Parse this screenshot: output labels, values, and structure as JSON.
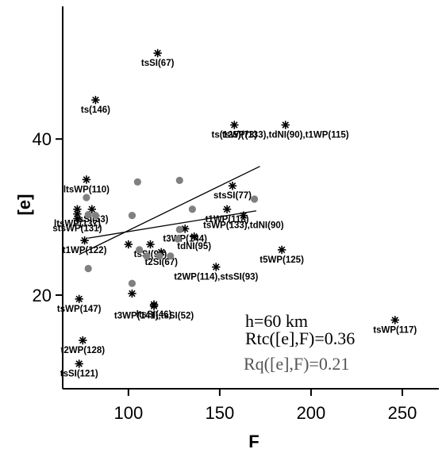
{
  "chart_data": {
    "type": "scatter",
    "xlabel": "F",
    "ylabel": "[e]",
    "xlim": [
      64,
      270
    ],
    "ylim": [
      8,
      57
    ],
    "xticks": [
      {
        "v": 100,
        "t": "100"
      },
      {
        "v": 150,
        "t": "150"
      },
      {
        "v": 200,
        "t": "200"
      },
      {
        "v": 250,
        "t": "250"
      }
    ],
    "yticks": [
      {
        "v": 20,
        "t": "20"
      },
      {
        "v": 40,
        "t": "40"
      }
    ],
    "annotations": [
      {
        "text": "h=60 km",
        "color": "#000000"
      },
      {
        "text": "Rtc([e],F)=0.36",
        "color": "#000000"
      },
      {
        "text": "Rq([e],F)=0.21",
        "color": "#555555"
      }
    ],
    "series": [
      {
        "marker": "star",
        "color": "#000000",
        "points": [
          {
            "x": 116,
            "y": 51.0,
            "label": "tsSI(67)"
          },
          {
            "x": 82,
            "y": 45.0,
            "label": "ts(146)"
          },
          {
            "x": 158,
            "y": 41.8,
            "label": "ts(125)(73)"
          },
          {
            "x": 186,
            "y": 41.8,
            "label": "tsWP(133),tdNI(90),t1WP(115)"
          },
          {
            "x": 77,
            "y": 34.8,
            "label": "ltsWP(110)"
          },
          {
            "x": 157,
            "y": 34.0,
            "label": "stsSI(77)"
          },
          {
            "x": 72,
            "y": 31.0,
            "label": ""
          },
          {
            "x": 72,
            "y": 30.4,
            "label": "ltsWP(137)"
          },
          {
            "x": 72,
            "y": 29.8,
            "label": "stsWP(131)"
          },
          {
            "x": 80,
            "y": 31.0,
            "label": "tsSI(53)"
          },
          {
            "x": 154,
            "y": 31.0,
            "label": "t1WP(118)"
          },
          {
            "x": 163,
            "y": 30.2,
            "label": "tsWP(133),tdNI(90)"
          },
          {
            "x": 131,
            "y": 28.5,
            "label": "t3WP(144)"
          },
          {
            "x": 136,
            "y": 27.5,
            "label": "tdNI(95)"
          },
          {
            "x": 76,
            "y": 27.0,
            "label": "t1WP(122)"
          },
          {
            "x": 100,
            "y": 26.5,
            "label": ""
          },
          {
            "x": 112,
            "y": 26.5,
            "label": "tsSI(95)"
          },
          {
            "x": 118,
            "y": 25.5,
            "label": "t2SI(67)"
          },
          {
            "x": 184,
            "y": 25.8,
            "label": "t5WP(125)"
          },
          {
            "x": 148,
            "y": 23.6,
            "label": "t2WP(114),stsSI(93)"
          },
          {
            "x": 102,
            "y": 20.2,
            "label": ""
          },
          {
            "x": 114,
            "y": 18.8,
            "label": "ltsSI(46)"
          },
          {
            "x": 114,
            "y": 18.6,
            "label": "t3WP(141),tsSI(52)"
          },
          {
            "x": 73,
            "y": 19.5,
            "label": "tsWP(147)"
          },
          {
            "x": 246,
            "y": 16.8,
            "label": "tsWP(117)"
          },
          {
            "x": 75,
            "y": 14.2,
            "label": "t2WP(128)"
          },
          {
            "x": 73,
            "y": 11.2,
            "label": "tsSI(121)"
          }
        ]
      },
      {
        "marker": "circle",
        "color": "#808080",
        "points": [
          {
            "x": 105,
            "y": 34.5
          },
          {
            "x": 128,
            "y": 34.7
          },
          {
            "x": 77,
            "y": 32.5
          },
          {
            "x": 135,
            "y": 31.0
          },
          {
            "x": 102,
            "y": 30.2
          },
          {
            "x": 169,
            "y": 32.3
          },
          {
            "x": 78,
            "y": 30.3
          },
          {
            "x": 82,
            "y": 30.2
          },
          {
            "x": 106,
            "y": 25.8
          },
          {
            "x": 128,
            "y": 28.4
          },
          {
            "x": 127,
            "y": 27.2
          },
          {
            "x": 110,
            "y": 25.0
          },
          {
            "x": 117,
            "y": 25.0
          },
          {
            "x": 123,
            "y": 25.0
          },
          {
            "x": 78,
            "y": 23.4
          },
          {
            "x": 102,
            "y": 21.5
          }
        ]
      }
    ],
    "lines": [
      {
        "name": "tc-fit",
        "color": "#000000",
        "x": [
          73,
          172
        ],
        "y": [
          25.2,
          36.5
        ]
      },
      {
        "name": "q-fit",
        "color": "#000000",
        "x": [
          78,
          170
        ],
        "y": [
          27.3,
          30.8
        ]
      }
    ]
  }
}
